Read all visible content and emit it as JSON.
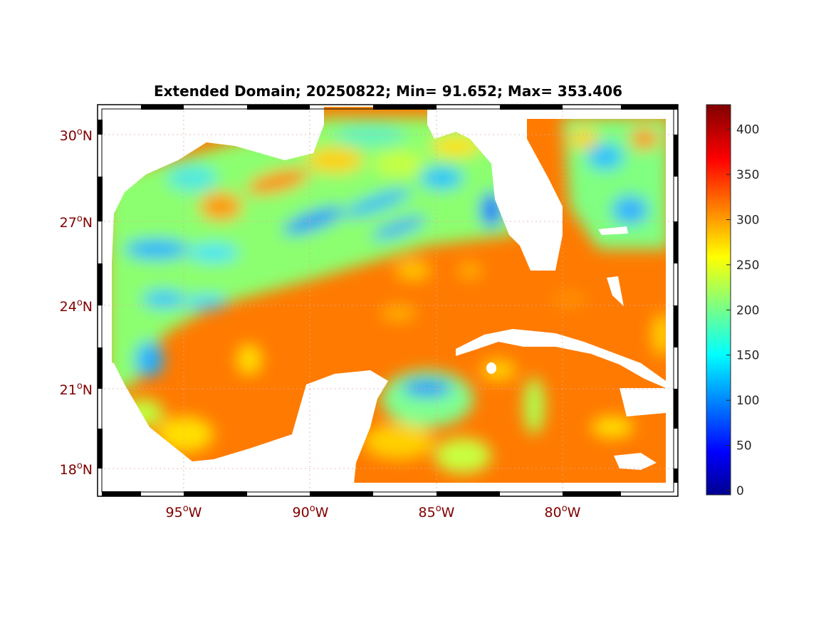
{
  "title": "Extended Domain; 20250822; Min= 91.652; Max= 353.406",
  "map": {
    "region": "Gulf of Mexico / Caribbean",
    "lat_labels": [
      "30",
      "27",
      "24",
      "21",
      "18"
    ],
    "lat_suffix": "N",
    "lon_labels": [
      "95",
      "90",
      "85",
      "80"
    ],
    "lon_suffix": "W",
    "degree_symbol": "o",
    "lat_range": [
      17.0,
      31.0
    ],
    "lon_range": [
      -98.4,
      -75.4
    ],
    "min_value": 91.652,
    "max_value": 353.406,
    "date": "20250822"
  },
  "colorbar": {
    "colormap": "jet",
    "range": [
      0,
      432
    ],
    "ticks": [
      "0",
      "50",
      "100",
      "150",
      "200",
      "250",
      "300",
      "350",
      "400"
    ],
    "tick_values": [
      0,
      50,
      100,
      150,
      200,
      250,
      300,
      350,
      400
    ]
  },
  "colors": {
    "tick_label": "#800000",
    "background_field": "#ff8000",
    "land": "#ffffff"
  }
}
